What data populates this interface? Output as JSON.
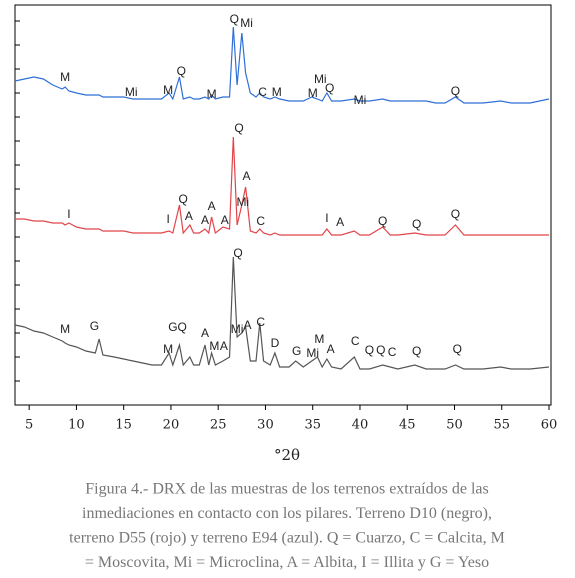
{
  "chart_data": {
    "type": "line",
    "x_label": "°2θ",
    "caption": [
      "Figura 4.- DRX de las muestras de los terrenos extraídos de las",
      "inmediaciones en contacto con los pilares. Terreno D10 (negro),",
      "terreno D55 (rojo) y terreno E94 (azul). Q = Cuarzo, C = Calcita, M",
      "= Moscovita, Mi = Microclina, A = Albita, I = Illita y G = Yeso"
    ],
    "xlim": [
      3.5,
      60
    ],
    "xticks": [
      5,
      10,
      15,
      20,
      25,
      30,
      35,
      40,
      45,
      50,
      55,
      60
    ],
    "ylim": [
      0,
      100
    ],
    "yticks": [
      0,
      6,
      12,
      18,
      24,
      30,
      36,
      42,
      48,
      54,
      60,
      66,
      72,
      78,
      84,
      90,
      96
    ],
    "x": [
      3.5,
      4.5,
      5.5,
      6.5,
      7.5,
      8.5,
      8.8,
      9.2,
      10,
      11,
      12,
      12.4,
      12.8,
      14,
      15,
      16,
      17,
      18,
      19,
      19.8,
      20.2,
      20.9,
      21.3,
      22,
      22.4,
      23,
      23.6,
      24,
      24.3,
      24.7,
      25.5,
      26.2,
      26.6,
      27,
      27.5,
      27.9,
      28.4,
      29,
      29.4,
      29.8,
      30.5,
      31,
      31.5,
      32.5,
      33.2,
      34,
      34.9,
      35.5,
      36,
      36.5,
      37,
      38,
      39.4,
      40,
      41,
      42.4,
      43.2,
      44,
      45.8,
      47,
      48,
      49,
      50.1,
      51,
      52,
      53,
      54.9,
      56,
      58,
      60
    ],
    "series": [
      {
        "color": "#555555",
        "values": [
          20,
          19.5,
          18.5,
          18,
          17,
          16,
          15.5,
          15,
          14.5,
          13.5,
          13,
          16.5,
          12.5,
          12,
          11.5,
          11,
          10.5,
          10,
          10,
          13,
          10,
          15,
          10,
          12,
          10,
          10,
          15,
          10,
          13,
          10,
          11,
          12,
          37,
          17,
          18,
          19.5,
          11,
          11,
          20.5,
          11,
          10,
          13,
          9.5,
          9.5,
          11,
          9.5,
          11,
          12,
          9.5,
          11.5,
          9.5,
          9,
          12,
          9,
          9,
          10,
          9.5,
          9,
          10,
          9,
          9,
          9,
          10,
          9,
          9,
          9,
          9.5,
          9,
          9,
          9.5
        ]
      },
      {
        "color": "#e0454a",
        "values": [
          46.5,
          46.5,
          46,
          46,
          45.5,
          45.5,
          45,
          45.5,
          44.5,
          44,
          44,
          44,
          43.5,
          43.5,
          43.5,
          43,
          43,
          43,
          43,
          43.5,
          43,
          50,
          43,
          45,
          43,
          43,
          44,
          43,
          47,
          43,
          44.5,
          44,
          67,
          45,
          50,
          54.5,
          43.5,
          43,
          44,
          43,
          42.5,
          43,
          42.5,
          42.5,
          42.5,
          42.5,
          42.5,
          42.5,
          42.5,
          44,
          42.5,
          42.5,
          43.5,
          42.5,
          42.5,
          44.5,
          42.5,
          42.5,
          43,
          42.5,
          42.5,
          42.5,
          45,
          42.5,
          42.5,
          42.5,
          42.5,
          42.5,
          42.5,
          42.5
        ]
      },
      {
        "color": "#2f6fd8",
        "values": [
          81,
          81.5,
          82,
          81.5,
          80,
          79,
          79.5,
          78.5,
          78,
          77.5,
          77.5,
          77.5,
          77,
          77,
          77,
          76.5,
          76.5,
          76.5,
          76.5,
          78,
          76.5,
          82,
          76.5,
          77,
          76.5,
          76.5,
          77,
          76.5,
          77.5,
          76.5,
          77,
          77,
          94.5,
          80,
          93,
          83,
          78,
          77,
          78,
          77,
          76.5,
          77,
          76.5,
          76,
          76,
          76,
          77,
          76.5,
          76,
          78,
          76,
          76,
          76.5,
          76,
          76,
          76.5,
          76,
          76,
          76,
          76,
          75.5,
          75.5,
          77,
          75.5,
          75.5,
          75.5,
          76,
          75.5,
          75.5,
          76.5
        ]
      }
    ],
    "annotations": [
      {
        "text": "M",
        "x": 8.8,
        "y": 81.75
      },
      {
        "text": "Mi",
        "x": 15.8,
        "y": 78
      },
      {
        "text": "M",
        "x": 19.7,
        "y": 78.5
      },
      {
        "text": "Q",
        "x": 21.1,
        "y": 83.25
      },
      {
        "text": "M",
        "x": 24.3,
        "y": 77.5
      },
      {
        "text": "Q",
        "x": 26.7,
        "y": 96.25
      },
      {
        "text": "Mi",
        "x": 28.0,
        "y": 95.25
      },
      {
        "text": "C",
        "x": 29.7,
        "y": 78
      },
      {
        "text": "M",
        "x": 31.2,
        "y": 78
      },
      {
        "text": "M",
        "x": 35.0,
        "y": 77.75
      },
      {
        "text": "Mi",
        "x": 35.8,
        "y": 81.25
      },
      {
        "text": "Q",
        "x": 36.8,
        "y": 79
      },
      {
        "text": "Mi",
        "x": 40.0,
        "y": 76
      },
      {
        "text": "Q",
        "x": 50.1,
        "y": 78.25
      },
      {
        "text": "I",
        "x": 9.2,
        "y": 47.5
      },
      {
        "text": "Q",
        "x": 27.2,
        "y": 69
      },
      {
        "text": "A",
        "x": 28,
        "y": 57
      },
      {
        "text": "Q",
        "x": 21.3,
        "y": 51.25
      },
      {
        "text": "A",
        "x": 24.3,
        "y": 49.5
      },
      {
        "text": "I",
        "x": 19.7,
        "y": 46.25
      },
      {
        "text": "A",
        "x": 21.9,
        "y": 47
      },
      {
        "text": "A",
        "x": 23.6,
        "y": 46
      },
      {
        "text": "A",
        "x": 25.7,
        "y": 46
      },
      {
        "text": "Mi",
        "x": 27.6,
        "y": 50.5
      },
      {
        "text": "C",
        "x": 29.5,
        "y": 45.75
      },
      {
        "text": "I",
        "x": 36.5,
        "y": 46.5
      },
      {
        "text": "A",
        "x": 37.9,
        "y": 45.5
      },
      {
        "text": "Q",
        "x": 42.4,
        "y": 45.75
      },
      {
        "text": "Q",
        "x": 46.0,
        "y": 45
      },
      {
        "text": "Q",
        "x": 50.1,
        "y": 47.5
      },
      {
        "text": "Q",
        "x": 27.1,
        "y": 37.75
      },
      {
        "text": "M",
        "x": 8.8,
        "y": 18.75
      },
      {
        "text": "G",
        "x": 11.9,
        "y": 19.5
      },
      {
        "text": "GQ",
        "x": 20.7,
        "y": 19.25
      },
      {
        "text": "A",
        "x": 23.6,
        "y": 17.75
      },
      {
        "text": "Mi",
        "x": 27.0,
        "y": 18.75
      },
      {
        "text": "A",
        "x": 28.1,
        "y": 19.75
      },
      {
        "text": "C",
        "x": 29.5,
        "y": 20.5
      },
      {
        "text": "M",
        "x": 19.7,
        "y": 13.75
      },
      {
        "text": "M",
        "x": 24.6,
        "y": 14.5
      },
      {
        "text": "A",
        "x": 25.6,
        "y": 14.5
      },
      {
        "text": "D",
        "x": 31.0,
        "y": 15.25
      },
      {
        "text": "G",
        "x": 33.3,
        "y": 13.25
      },
      {
        "text": "Mi",
        "x": 35.0,
        "y": 12.75
      },
      {
        "text": "M",
        "x": 35.7,
        "y": 16.25
      },
      {
        "text": "A",
        "x": 36.9,
        "y": 13.75
      },
      {
        "text": "C",
        "x": 39.5,
        "y": 15.75
      },
      {
        "text": "Q",
        "x": 41.0,
        "y": 13.5
      },
      {
        "text": "Q",
        "x": 42.2,
        "y": 13.5
      },
      {
        "text": "C",
        "x": 43.4,
        "y": 13
      },
      {
        "text": "Q",
        "x": 46.0,
        "y": 13.25
      },
      {
        "text": "Q",
        "x": 50.3,
        "y": 13.75
      }
    ]
  }
}
